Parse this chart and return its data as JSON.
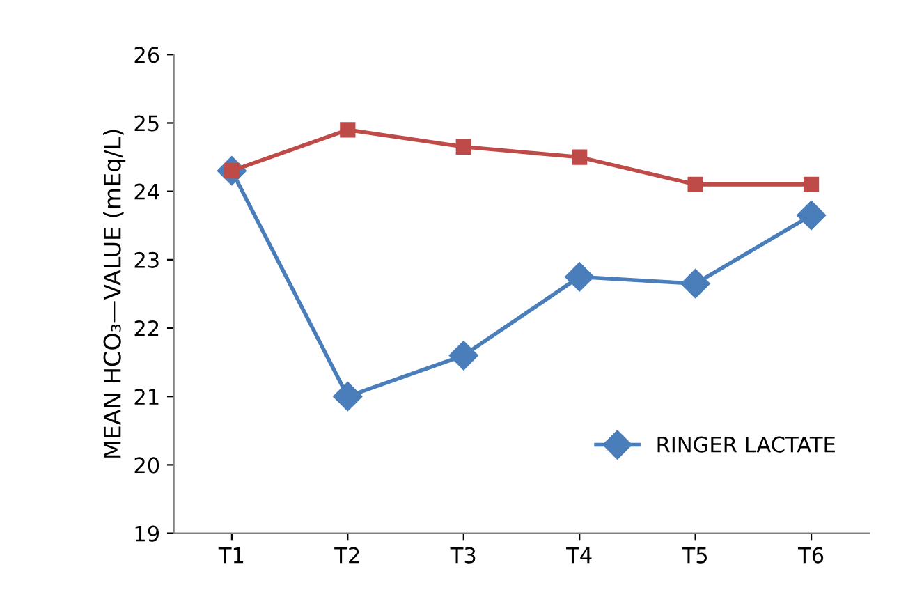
{
  "chart_data": {
    "type": "line",
    "ylabel": "MEAN HCO₃—VALUE (mEq/L)",
    "categories": [
      "T1",
      "T2",
      "T3",
      "T4",
      "T5",
      "T6"
    ],
    "series": [
      {
        "name": "RINGER LACTATE",
        "color": "#4a7ebb",
        "marker": "diamond",
        "values": [
          24.3,
          21.0,
          21.6,
          22.75,
          22.65,
          23.65
        ]
      },
      {
        "color": "#be4b48",
        "marker": "square",
        "values": [
          24.3,
          24.9,
          24.65,
          24.5,
          24.1,
          24.1
        ]
      }
    ],
    "ylim": [
      19,
      26
    ],
    "yticks": [
      19,
      20,
      21,
      22,
      23,
      24,
      25,
      26
    ],
    "grid": false,
    "legend": "lower right"
  }
}
